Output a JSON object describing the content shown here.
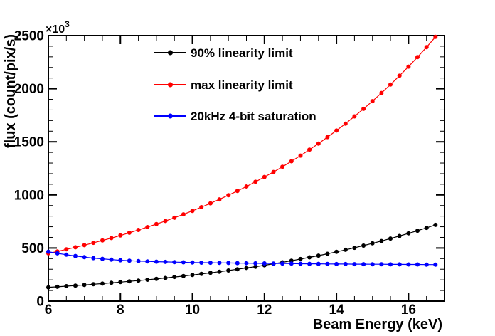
{
  "chart_data": {
    "type": "line",
    "title": "",
    "xlabel": "Beam Energy (keV)",
    "ylabel": "flux (count/pix/s)",
    "y_axis_power_prefix": "×10",
    "y_axis_power_exponent": "3",
    "y_values_unit": "×10³ count/pix/s",
    "xlim": [
      6,
      17
    ],
    "ylim": [
      0,
      2500
    ],
    "xticks": [
      6,
      8,
      10,
      12,
      14,
      16
    ],
    "yticks": [
      0,
      500,
      1000,
      1500,
      2000,
      2500
    ],
    "x_minor_step": 0.5,
    "y_minor_step": 100,
    "grid": false,
    "legend_position": "top-left-inside",
    "marker": "filled-circle",
    "x": [
      6.0,
      6.25,
      6.5,
      6.75,
      7.0,
      7.25,
      7.5,
      7.75,
      8.0,
      8.25,
      8.5,
      8.75,
      9.0,
      9.25,
      9.5,
      9.75,
      10.0,
      10.25,
      10.5,
      10.75,
      11.0,
      11.25,
      11.5,
      11.75,
      12.0,
      12.25,
      12.5,
      12.75,
      13.0,
      13.25,
      13.5,
      13.75,
      14.0,
      14.25,
      14.5,
      14.75,
      15.0,
      15.25,
      15.5,
      15.75,
      16.0,
      16.25,
      16.5,
      16.75
    ],
    "series": [
      {
        "name": "90% linearity limit",
        "color": "#000000",
        "values": [
          130,
          135,
          141,
          146,
          152,
          159,
          165,
          172,
          179,
          186,
          193,
          201,
          209,
          218,
          227,
          236,
          246,
          256,
          266,
          277,
          288,
          300,
          312,
          324,
          338,
          351,
          365,
          380,
          396,
          412,
          428,
          446,
          464,
          483,
          502,
          523,
          544,
          566,
          589,
          613,
          638,
          663,
          690,
          718
        ]
      },
      {
        "name": "max linearity limit",
        "color": "#ff0000",
        "values": [
          450,
          468,
          487,
          507,
          527,
          549,
          571,
          594,
          618,
          644,
          670,
          697,
          725,
          755,
          785,
          817,
          850,
          885,
          921,
          958,
          997,
          1037,
          1079,
          1123,
          1169,
          1216,
          1265,
          1317,
          1370,
          1426,
          1483,
          1544,
          1606,
          1671,
          1739,
          1810,
          1883,
          1960,
          2039,
          2122,
          2208,
          2297,
          2391,
          2488
        ]
      },
      {
        "name": "20kHz 4-bit saturation",
        "color": "#0000ff",
        "values": [
          465,
          450,
          437,
          425,
          414,
          405,
          398,
          391,
          385,
          381,
          377,
          374,
          371,
          369,
          367,
          365,
          363,
          362,
          361,
          360,
          359,
          358,
          357,
          356,
          355,
          354,
          354,
          353,
          352,
          351,
          351,
          350,
          349,
          349,
          348,
          348,
          347,
          347,
          346,
          346,
          345,
          345,
          344,
          344
        ]
      }
    ]
  },
  "colors": {
    "frame": "#000000",
    "background": "#ffffff"
  }
}
